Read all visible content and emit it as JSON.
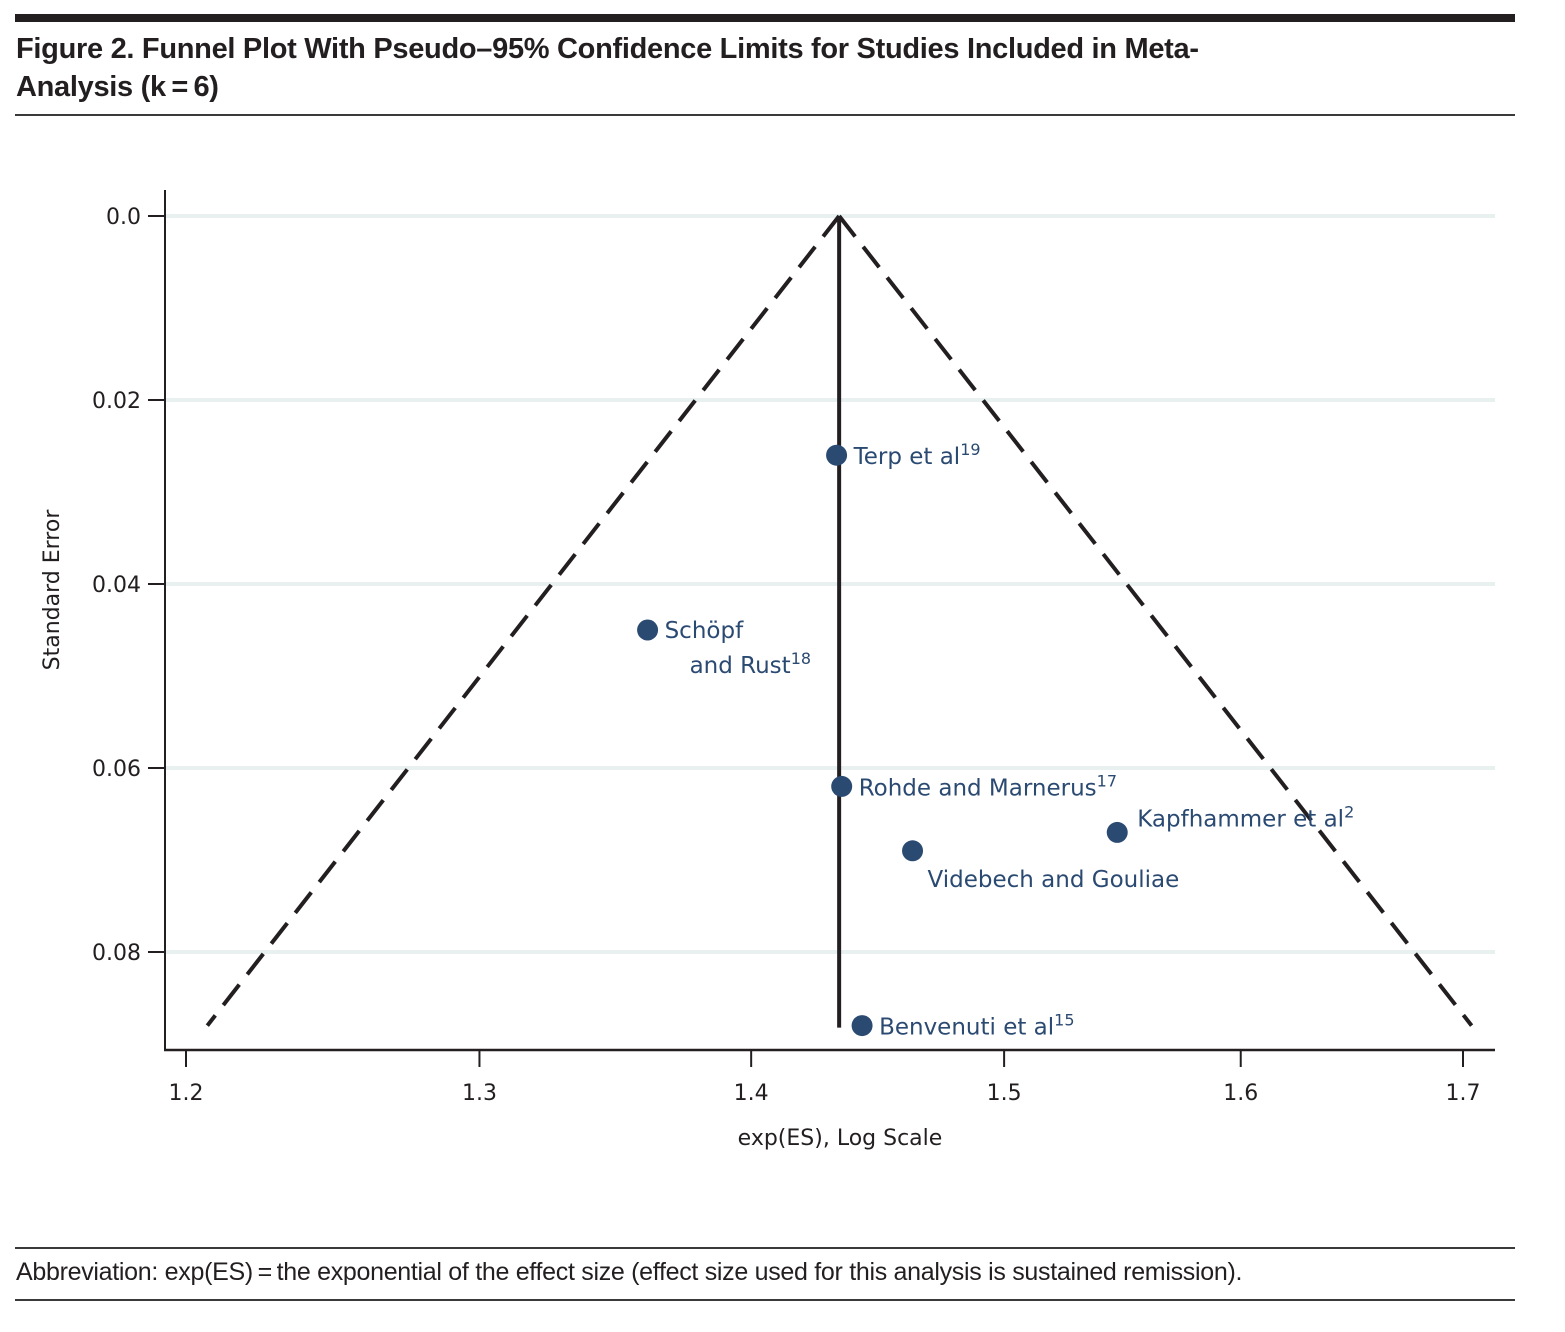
{
  "figure": {
    "title_line1": "Figure 2. Funnel Plot With Pseudo–95% Confidence Limits for Studies Included in Meta-",
    "title_line2": "Analysis (k = 6)",
    "footnote": "Abbreviation: exp(ES) = the exponential of the effect size (effect size used for this analysis is sustained remission)."
  },
  "chart_data": {
    "type": "scatter",
    "title": "Funnel Plot With Pseudo–95% Confidence Limits for Studies Included in Meta-Analysis (k = 6)",
    "xlabel": "exp(ES), Log Scale",
    "ylabel": "Standard Error",
    "x_scale": "log",
    "y_inverted": true,
    "xlim": [
      1.195,
      1.713
    ],
    "ylim": [
      0.0,
      0.091
    ],
    "x_ticks": [
      1.2,
      1.3,
      1.4,
      1.5,
      1.6,
      1.7
    ],
    "x_tick_labels": [
      "1.2",
      "1.3",
      "1.4",
      "1.5",
      "1.6",
      "1.7"
    ],
    "y_ticks": [
      0.0,
      0.02,
      0.04,
      0.06,
      0.08
    ],
    "y_tick_labels": [
      "0.0",
      "0.02",
      "0.04",
      "0.06",
      "0.08"
    ],
    "grid": "horizontal",
    "colors": {
      "points": "#2b4a72",
      "lines": "#231f20",
      "grid": "#e8f0f0"
    },
    "pooled_estimate": 1.434,
    "funnel": {
      "apex": {
        "x": 1.434,
        "se": 0.0
      },
      "max_se": 0.088,
      "left_end_x": 1.207,
      "right_end_x": 1.704,
      "style": "dashed"
    },
    "points": [
      {
        "label": "Terp et al",
        "ref": "19",
        "x": 1.433,
        "se": 0.026,
        "label_pos": "right"
      },
      {
        "label_lines": [
          "Schöpf",
          "and Rust"
        ],
        "label": "Schöpf and Rust",
        "ref": "18",
        "x": 1.361,
        "se": 0.045,
        "label_pos": "right-wrap"
      },
      {
        "label": "Rohde and Marnerus",
        "ref": "17",
        "x": 1.435,
        "se": 0.062,
        "label_pos": "right"
      },
      {
        "label": "Kapfhammer et al",
        "ref": "2",
        "x": 1.547,
        "se": 0.067,
        "label_pos": "upper-right"
      },
      {
        "label": "Videbech and Gouliae",
        "ref": "",
        "x": 1.463,
        "se": 0.069,
        "label_pos": "below-right"
      },
      {
        "label": "Benvenuti et al",
        "ref": "15",
        "x": 1.443,
        "se": 0.088,
        "label_pos": "right"
      }
    ]
  }
}
